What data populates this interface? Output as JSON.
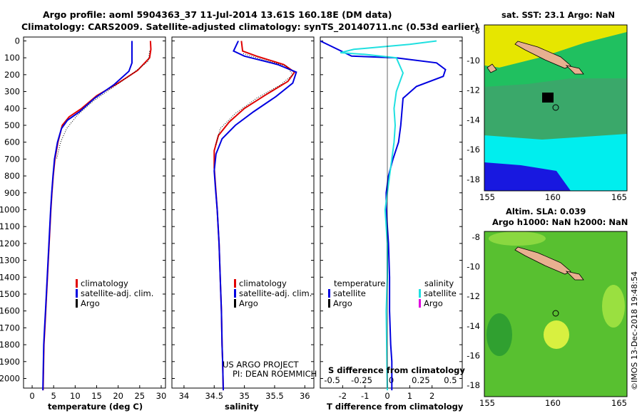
{
  "header": {
    "line1": "Argo profile: aoml 5904363_37 11-Jul-2014 13.61S 160.18E (DM data)",
    "line2": "Climatology: CARS2009. Satellite-adjusted climatology: synTS_20140711.nc (0.53d earlier)"
  },
  "depth_ticks": [
    "0",
    "100",
    "200",
    "300",
    "400",
    "500",
    "600",
    "700",
    "800",
    "900",
    "1000",
    "1100",
    "1200",
    "1300",
    "1400",
    "1500",
    "1600",
    "1700",
    "1800",
    "1900",
    "2000"
  ],
  "legend_common": {
    "climatology": "climatology",
    "satellite": "satellite-adj. clim.",
    "argo": "Argo"
  },
  "credit": {
    "line1": "US ARGO PROJECT",
    "line2": "PI: DEAN ROEMMICH"
  },
  "diff_legend": {
    "temp_title": "temperature",
    "sal_title": "salinity",
    "satellite": "satellite",
    "argo": "Argo"
  },
  "sst_panel": {
    "title": "sat. SST: 23.1 Argo: NaN",
    "yticks": [
      "-8",
      "-10",
      "-12",
      "-14",
      "-16",
      "-18"
    ],
    "xticks": [
      "155",
      "160",
      "165"
    ]
  },
  "sla_panel": {
    "title1": "Altim. SLA: 0.039",
    "title2": "Argo h1000: NaN h2000: NaN",
    "yticks": [
      "-8",
      "-10",
      "-12",
      "-14",
      "-16",
      "-18"
    ],
    "xticks": [
      "155",
      "160",
      "165"
    ]
  },
  "imos_stamp": "©IMOS 13-Dec-2018 19:48:54",
  "colors": {
    "climatology": "#e00000",
    "satellite": "#0000e0",
    "argo": "#000000",
    "sal_satellite": "#20e0e0",
    "sal_argo": "#e000e0"
  },
  "chart_data": [
    {
      "type": "line",
      "xlabel": "temperature (deg C)",
      "ylabel": "",
      "xlim": [
        -2,
        31
      ],
      "ylim": [
        2080,
        0
      ],
      "xticks": [
        "0",
        "5",
        "10",
        "15",
        "20",
        "25",
        "30"
      ],
      "series": [
        {
          "name": "climatology",
          "x": [
            27.5,
            27.6,
            27.3,
            24.5,
            20,
            15,
            11.5,
            8.6,
            7.0,
            6.0,
            5.3,
            4.9,
            4.6,
            4.35,
            4.15,
            3.95,
            3.75,
            3.55,
            3.35,
            3.15,
            2.95,
            2.75,
            2.55
          ],
          "y": [
            0,
            50,
            100,
            175,
            250,
            325,
            400,
            450,
            500,
            600,
            700,
            800,
            900,
            1000,
            1100,
            1200,
            1300,
            1400,
            1500,
            1600,
            1700,
            1800,
            2070
          ]
        },
        {
          "name": "satellite-adj. clim.",
          "x": [
            23.2,
            23.2,
            23.2,
            22.5,
            19.0,
            14.5,
            11.0,
            8.2,
            6.8,
            5.9,
            5.2,
            4.85,
            4.55,
            4.3,
            4.1,
            3.9,
            3.7,
            3.5,
            3.3,
            3.1,
            2.9,
            2.7,
            2.5
          ],
          "y": [
            0,
            50,
            130,
            180,
            260,
            340,
            420,
            470,
            520,
            600,
            700,
            800,
            900,
            1000,
            1100,
            1200,
            1300,
            1400,
            1500,
            1600,
            1700,
            1800,
            2070
          ]
        },
        {
          "name": "Argo",
          "x": [
            27.3,
            27.0,
            23.0,
            18.5,
            14.0,
            10.5,
            8.0,
            6.6,
            5.7
          ],
          "y": [
            60,
            120,
            200,
            280,
            360,
            440,
            520,
            600,
            700
          ]
        }
      ]
    },
    {
      "type": "line",
      "xlabel": "salinity",
      "ylabel": "",
      "xlim": [
        33.8,
        36.15
      ],
      "ylim": [
        2080,
        0
      ],
      "xticks": [
        "34",
        "34.5",
        "35",
        "35.5",
        "36"
      ],
      "series": [
        {
          "name": "climatology",
          "x": [
            34.95,
            34.97,
            35.2,
            35.65,
            35.83,
            35.72,
            35.35,
            35.0,
            34.75,
            34.57,
            34.5,
            34.5,
            34.52,
            34.55,
            34.58,
            34.6,
            34.62,
            34.63,
            34.64,
            34.65
          ],
          "y": [
            0,
            60,
            90,
            140,
            185,
            240,
            320,
            400,
            480,
            560,
            650,
            750,
            850,
            1000,
            1200,
            1400,
            1600,
            1800,
            1900,
            2070
          ]
        },
        {
          "name": "satellite-adj. clim.",
          "x": [
            34.9,
            34.82,
            35.0,
            35.55,
            35.86,
            35.8,
            35.52,
            35.15,
            34.85,
            34.63,
            34.53,
            34.5,
            34.52,
            34.55,
            34.58,
            34.6,
            34.62,
            34.63,
            34.64,
            34.65
          ],
          "y": [
            0,
            60,
            90,
            140,
            185,
            250,
            330,
            420,
            500,
            580,
            670,
            770,
            870,
            1000,
            1200,
            1400,
            1600,
            1800,
            1900,
            2070
          ]
        },
        {
          "name": "Argo",
          "x": [
            34.98,
            35.3,
            35.7,
            35.8,
            35.6,
            35.2,
            34.85,
            34.6,
            34.52
          ],
          "y": [
            75,
            110,
            150,
            200,
            260,
            340,
            430,
            520,
            620
          ]
        }
      ]
    },
    {
      "type": "line",
      "xlabel": "T difference from climatology",
      "ylabel": "",
      "title": "S difference from climatology",
      "xlim": [
        -3.0,
        3.35
      ],
      "ylim": [
        2080,
        0
      ],
      "xticks": [
        "-2",
        "-1",
        "0",
        "1",
        "2"
      ],
      "xticks_top": [
        "-0.5",
        "-0.25",
        "0",
        "0.25",
        "0.5"
      ],
      "series": [
        {
          "name": "temperature satellite",
          "x": [
            -4.3,
            -1.6,
            0.4,
            2.2,
            2.6,
            2.5,
            1.3,
            0.7,
            0.65,
            0.6,
            0.5,
            0.25,
            0.05,
            -0.05,
            -0.05,
            0.0,
            0.05,
            0.1,
            0.1,
            0.15,
            0.2,
            0.2
          ],
          "y": [
            0,
            90,
            100,
            130,
            170,
            210,
            270,
            340,
            420,
            500,
            600,
            700,
            800,
            900,
            1000,
            1100,
            1200,
            1400,
            1600,
            1800,
            1900,
            2070
          ]
        },
        {
          "name": "salinity satellite",
          "x": [
            2.2,
            1.0,
            -1.5,
            -2.1,
            -1.0,
            0.4,
            0.7,
            0.4,
            0.3,
            0.35,
            0.3,
            0.2,
            0.1,
            0.0,
            -0.1,
            -0.05,
            0.0,
            0.0,
            -0.05,
            0.0
          ],
          "y": [
            0,
            20,
            50,
            70,
            80,
            100,
            190,
            300,
            400,
            500,
            600,
            700,
            800,
            900,
            1000,
            1100,
            1200,
            1400,
            1600,
            2070
          ]
        }
      ]
    }
  ]
}
